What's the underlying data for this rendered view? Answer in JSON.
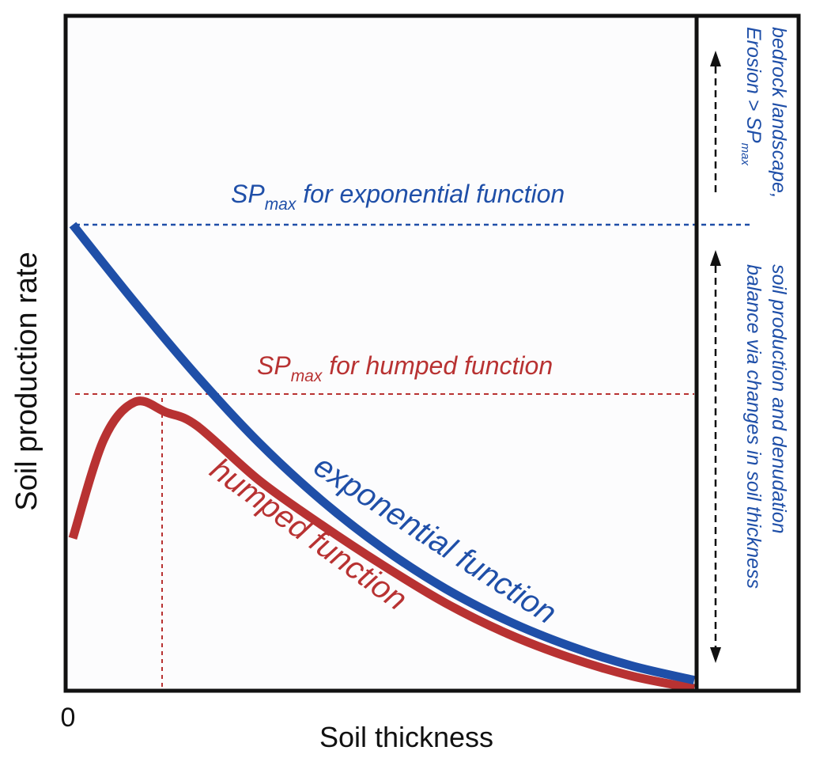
{
  "colors": {
    "exponential": "#1f4fa8",
    "humped": "#b83232",
    "frame": "#111111",
    "plot_bg": "#fcfcfd"
  },
  "labels": {
    "y_axis": "Soil production rate",
    "x_axis": "Soil thickness",
    "x_origin": "0",
    "sp_exp_main": "SP",
    "sp_exp_sub": "max",
    "sp_exp_rest": " for exponential function",
    "sp_hump_main": "SP",
    "sp_hump_sub": "max",
    "sp_hump_rest": " for humped function",
    "curve_exponential": "exponential function",
    "curve_humped": "humped function",
    "bedrock_line1": "bedrock landscape,",
    "bedrock_line2_main": "Erosion > SP",
    "bedrock_line2_sub": "max",
    "balance_line1": "soil production and  denudation",
    "balance_line2": "balance via changes in soil thickness"
  },
  "chart_data": {
    "type": "line",
    "xlabel": "Soil thickness",
    "ylabel": "Soil production rate",
    "xlim": [
      0,
      1
    ],
    "ylim": [
      0,
      1
    ],
    "series": [
      {
        "name": "exponential function",
        "x": [
          0,
          0.1,
          0.2,
          0.3,
          0.4,
          0.5,
          0.6,
          0.7,
          0.8,
          0.9,
          1.0
        ],
        "values": [
          0.68,
          0.566,
          0.458,
          0.36,
          0.276,
          0.205,
          0.146,
          0.099,
          0.062,
          0.033,
          0.012
        ]
      },
      {
        "name": "humped function",
        "x": [
          0,
          0.05,
          0.1,
          0.15,
          0.2,
          0.3,
          0.4,
          0.5,
          0.6,
          0.7,
          0.8,
          0.9,
          1.0
        ],
        "values": [
          0.22,
          0.365,
          0.42,
          0.405,
          0.385,
          0.305,
          0.24,
          0.18,
          0.125,
          0.08,
          0.045,
          0.018,
          0.0
        ]
      }
    ],
    "sp_max_exponential": 0.68,
    "sp_max_humped": 0.43,
    "humped_peak_x": 0.155,
    "grid": false
  }
}
